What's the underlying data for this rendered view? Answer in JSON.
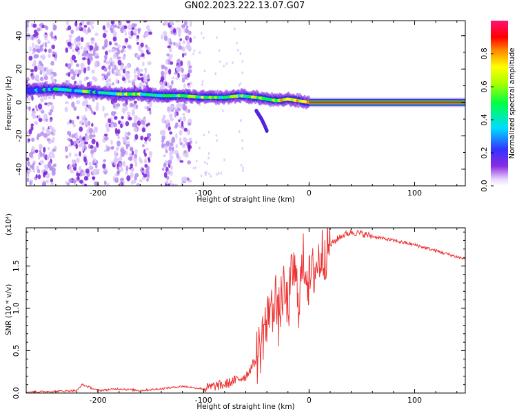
{
  "title": "GN02.2023.222.13.07.G07",
  "chart_data": [
    {
      "type": "heatmap",
      "xlabel": "Height of straight line (km)",
      "ylabel": "Frequency (Hz)",
      "xlim": [
        -268,
        148
      ],
      "ylim": [
        -50,
        49
      ],
      "x_ticks": [
        -200,
        -100,
        0,
        100
      ],
      "y_ticks": [
        -40,
        -20,
        0,
        20,
        40
      ],
      "colorbar": {
        "label": "Normalized spectral amplitude",
        "range": [
          0.0,
          1.0
        ],
        "ticks": [
          "0.0",
          "0.2",
          "0.4",
          "0.6",
          "0.8"
        ],
        "colormap": "rainbow (purple-blue-cyan-green-yellow-red-magenta)"
      },
      "ridge": {
        "x": [
          -268,
          -240,
          -220,
          -200,
          -180,
          -160,
          -140,
          -120,
          -100,
          -80,
          -65,
          -50,
          -40,
          -30,
          -20,
          -10,
          0,
          50,
          100,
          148
        ],
        "frequency_hz": [
          7,
          8,
          7,
          6,
          5,
          5,
          4,
          4,
          3,
          3,
          4,
          3,
          2,
          1,
          2,
          1,
          0,
          0,
          0,
          0
        ],
        "amplitude": [
          0.3,
          0.4,
          0.45,
          0.5,
          0.55,
          0.6,
          0.6,
          0.55,
          0.6,
          0.65,
          0.6,
          0.65,
          0.7,
          0.75,
          0.8,
          0.85,
          0.9,
          0.9,
          0.9,
          0.9
        ]
      },
      "branch": {
        "x": [
          -50,
          -45,
          -42,
          -40
        ],
        "frequency_hz": [
          -5,
          -10,
          -14,
          -17
        ]
      },
      "background_noise_bands_x": [
        [
          -268,
          -240
        ],
        [
          -230,
          -200
        ],
        [
          -195,
          -150
        ],
        [
          -140,
          -112
        ]
      ]
    },
    {
      "type": "line",
      "xlabel": "Height of straight line (km)",
      "ylabel": "SNR (10 * v/v)",
      "yscale_label": "(x10⁴)",
      "xlim": [
        -268,
        148
      ],
      "ylim": [
        0,
        1.95
      ],
      "x_ticks": [
        -200,
        -100,
        0,
        100
      ],
      "y_ticks": [
        "0.0",
        "0.5",
        "1.0",
        "1.5"
      ],
      "color": "#ee3333",
      "series": [
        {
          "x": [
            -268,
            -240,
            -220,
            -215,
            -200,
            -180,
            -160,
            -140,
            -120,
            -100,
            -90,
            -80,
            -70,
            -60,
            -55,
            -50,
            -45,
            -42,
            -40,
            -38,
            -35,
            -32,
            -30,
            -25,
            -20,
            -15,
            -10,
            -5,
            0,
            10,
            20,
            30,
            40,
            50,
            60,
            80,
            100,
            120,
            148
          ],
          "y": [
            0.01,
            0.02,
            0.03,
            0.1,
            0.03,
            0.05,
            0.03,
            0.05,
            0.08,
            0.05,
            0.08,
            0.1,
            0.15,
            0.2,
            0.3,
            0.4,
            0.6,
            0.85,
            0.7,
            1.1,
            0.9,
            1.3,
            0.8,
            1.2,
            1.0,
            1.5,
            1.1,
            1.6,
            1.3,
            1.6,
            1.75,
            1.85,
            1.9,
            1.88,
            1.85,
            1.8,
            1.75,
            1.68,
            1.58
          ]
        }
      ]
    }
  ]
}
